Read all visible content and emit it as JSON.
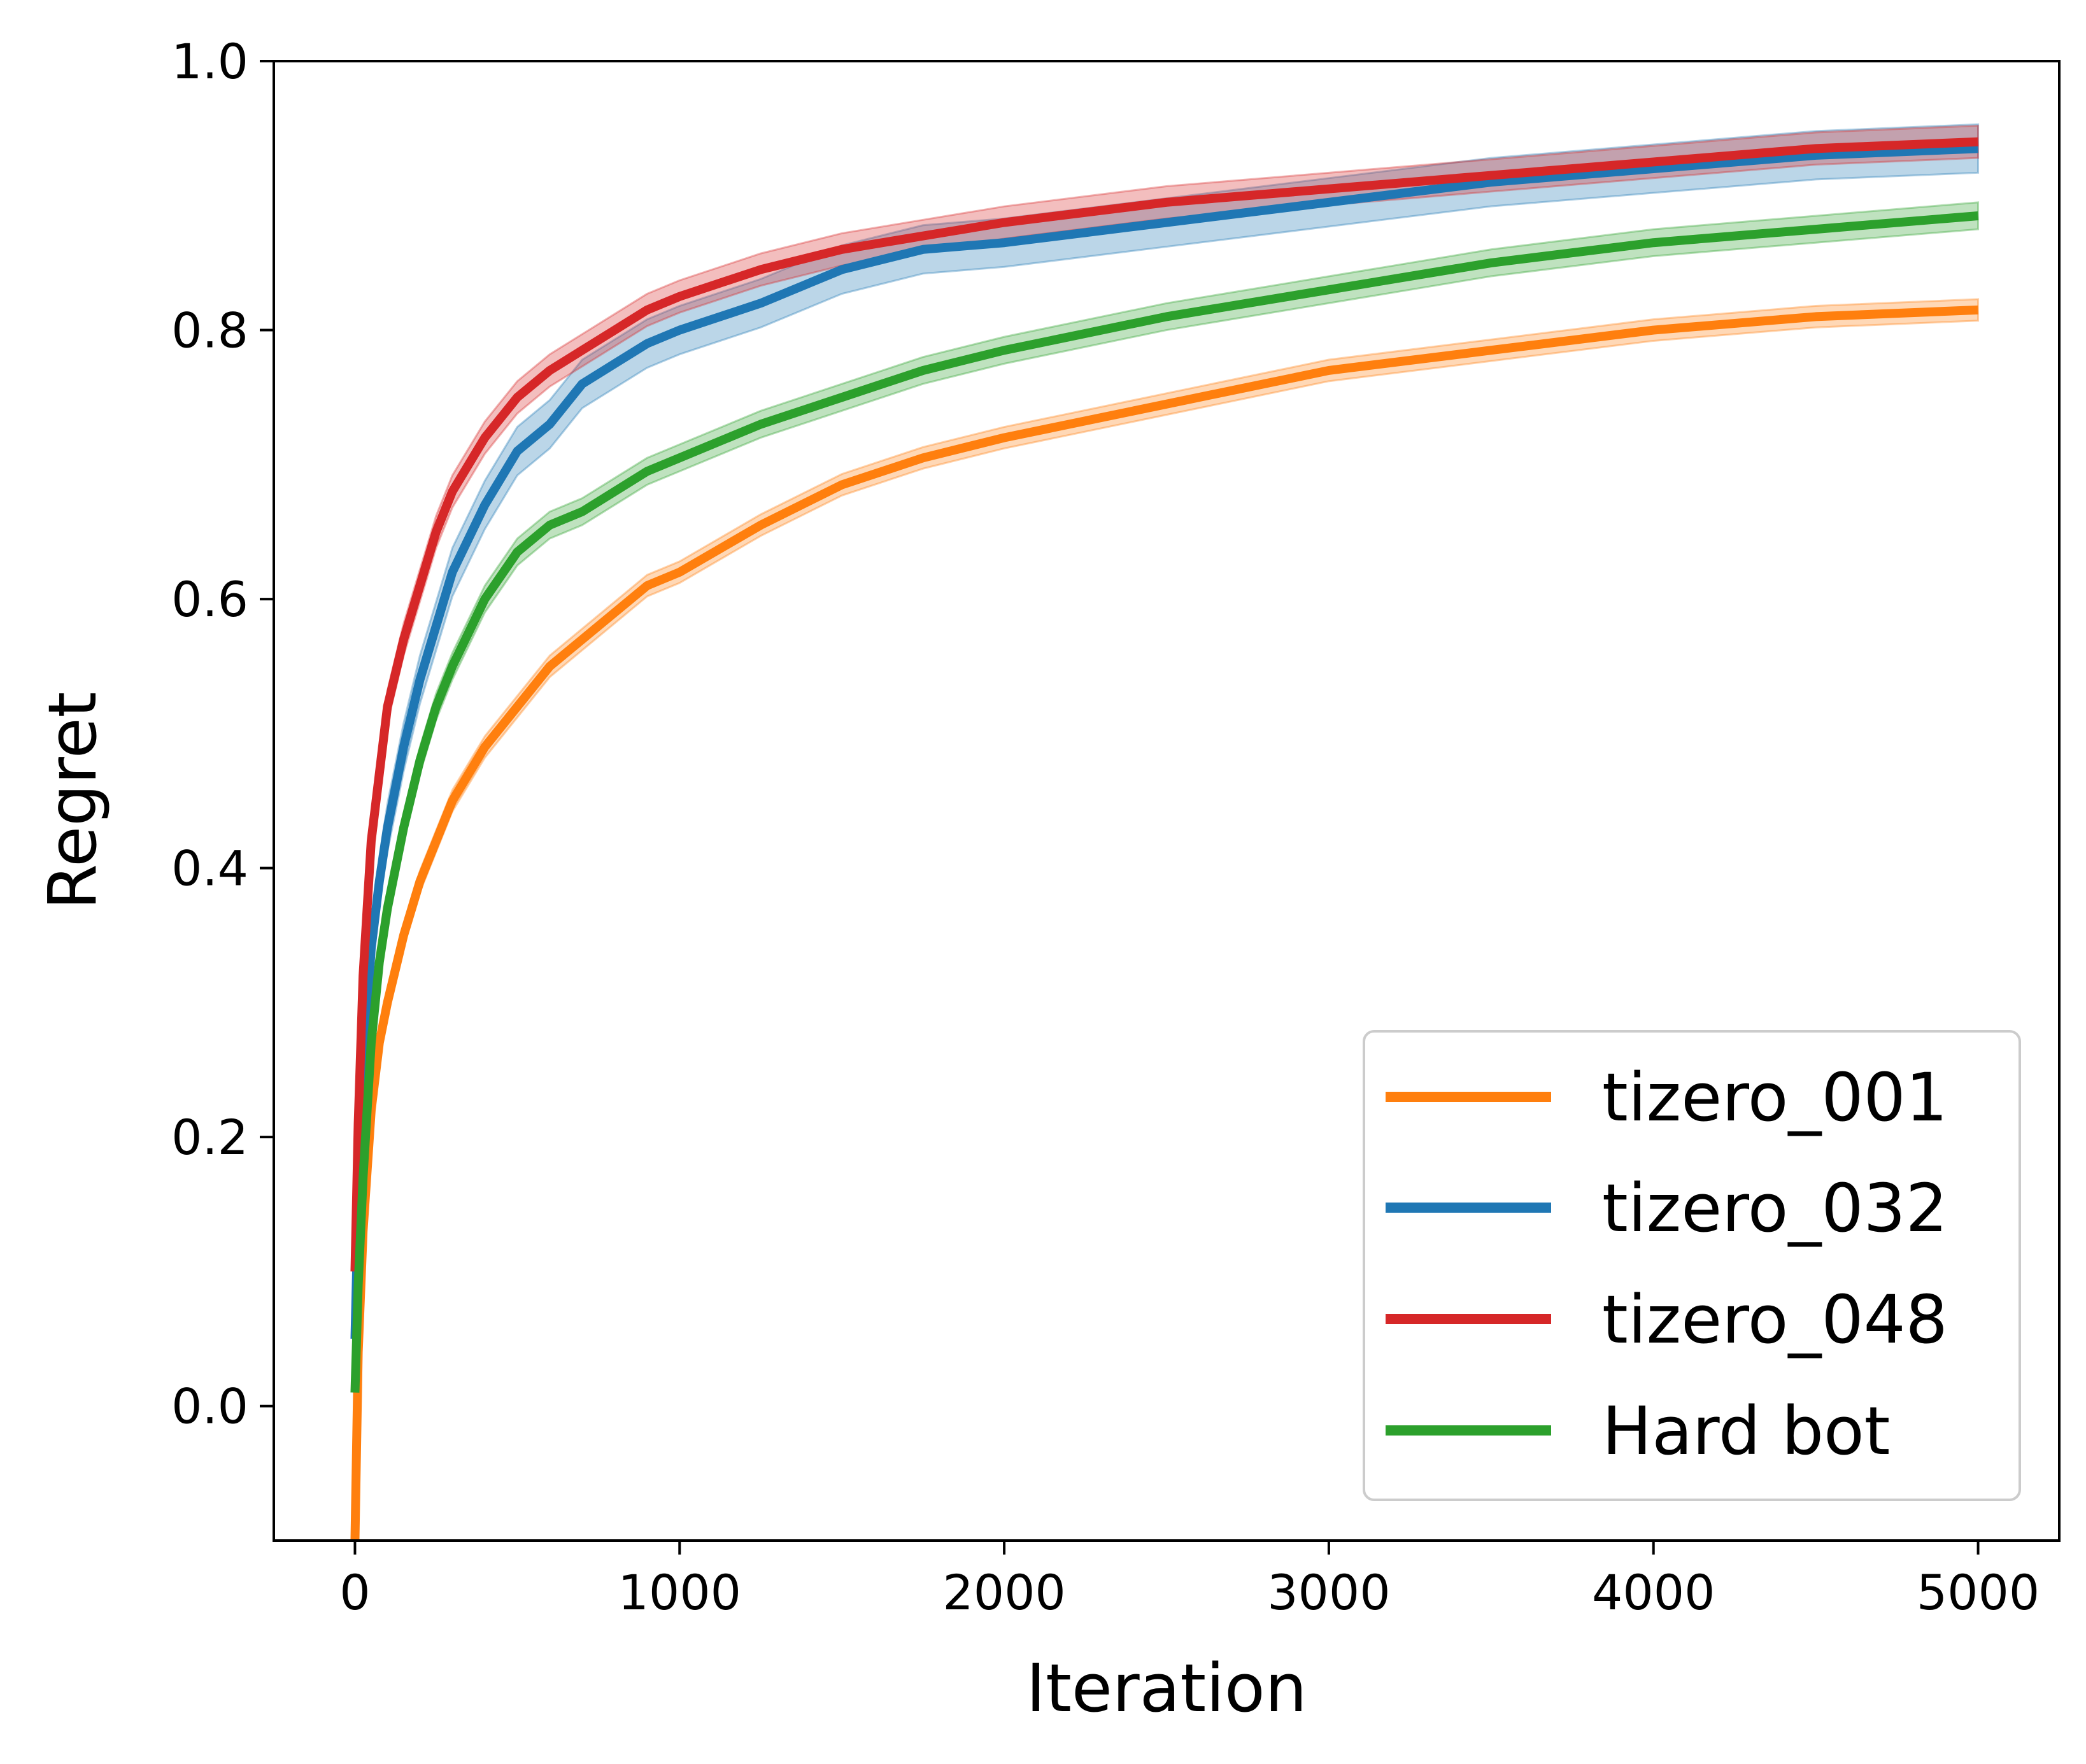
{
  "chart_data": {
    "type": "line",
    "title": "",
    "xlabel": "Iteration",
    "ylabel": "Regret",
    "xlim": [
      -250,
      5250
    ],
    "ylim": [
      -0.1,
      1.0
    ],
    "xticks": [
      0,
      1000,
      2000,
      3000,
      4000,
      5000
    ],
    "xtick_labels": [
      "0",
      "1000",
      "2000",
      "3000",
      "4000",
      "5000"
    ],
    "yticks": [
      0.0,
      0.2,
      0.4,
      0.6,
      0.8,
      1.0
    ],
    "ytick_labels": [
      "0.0",
      "0.2",
      "0.4",
      "0.6",
      "0.8",
      "1.0"
    ],
    "grid": false,
    "legend_position": "lower-right",
    "x": [
      0,
      10,
      25,
      50,
      75,
      100,
      150,
      200,
      250,
      300,
      400,
      500,
      600,
      700,
      800,
      900,
      1000,
      1250,
      1500,
      1750,
      2000,
      2500,
      3000,
      3500,
      4000,
      4500,
      5000
    ],
    "series": [
      {
        "name": "tizero_001",
        "color": "#ff7f0e",
        "band": 0.008,
        "values": [
          -0.1,
          0.04,
          0.13,
          0.22,
          0.27,
          0.3,
          0.35,
          0.39,
          0.42,
          0.45,
          0.49,
          0.52,
          0.55,
          0.57,
          0.59,
          0.61,
          0.62,
          0.655,
          0.685,
          0.705,
          0.72,
          0.745,
          0.77,
          0.785,
          0.8,
          0.81,
          0.815
        ]
      },
      {
        "name": "tizero_032",
        "color": "#1f77b4",
        "band": 0.018,
        "values": [
          0.05,
          0.15,
          0.25,
          0.34,
          0.39,
          0.43,
          0.49,
          0.54,
          0.58,
          0.62,
          0.67,
          0.71,
          0.73,
          0.76,
          0.775,
          0.79,
          0.8,
          0.82,
          0.845,
          0.86,
          0.865,
          0.88,
          0.895,
          0.91,
          0.92,
          0.93,
          0.935
        ]
      },
      {
        "name": "tizero_048",
        "color": "#d62728",
        "band": 0.012,
        "values": [
          0.1,
          0.21,
          0.32,
          0.42,
          0.47,
          0.52,
          0.57,
          0.61,
          0.65,
          0.68,
          0.72,
          0.75,
          0.77,
          0.785,
          0.8,
          0.815,
          0.825,
          0.845,
          0.86,
          0.87,
          0.88,
          0.895,
          0.905,
          0.915,
          0.925,
          0.935,
          0.94
        ]
      },
      {
        "name": "Hard bot",
        "color": "#2ca02c",
        "band": 0.01,
        "values": [
          0.01,
          0.09,
          0.17,
          0.27,
          0.33,
          0.37,
          0.43,
          0.48,
          0.52,
          0.55,
          0.6,
          0.635,
          0.655,
          0.665,
          0.68,
          0.695,
          0.705,
          0.73,
          0.75,
          0.77,
          0.785,
          0.81,
          0.83,
          0.85,
          0.865,
          0.875,
          0.885
        ]
      }
    ]
  }
}
